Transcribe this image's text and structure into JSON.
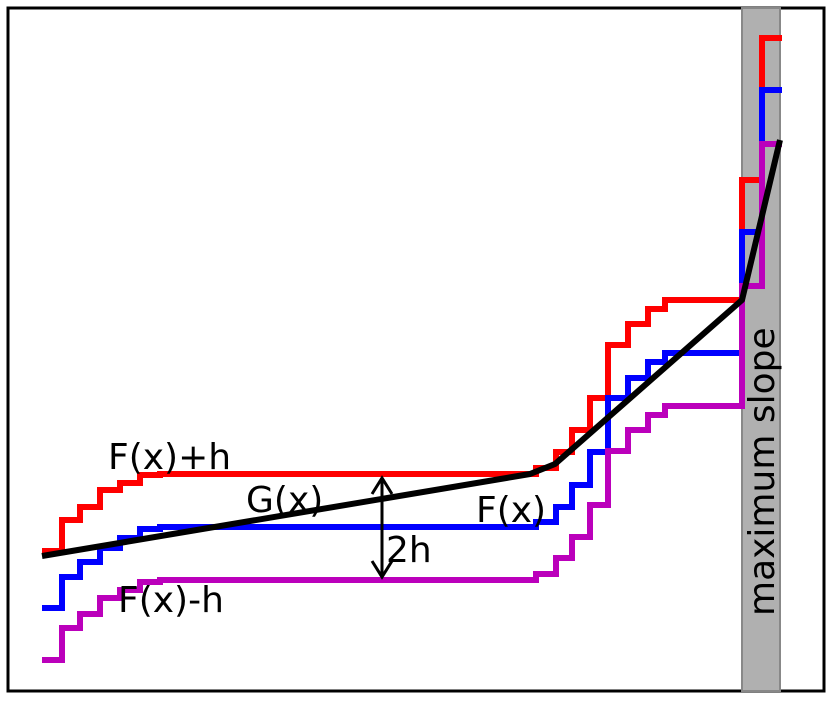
{
  "labels": {
    "f_plus_h": "F(x)+h",
    "g": "G(x)",
    "f": "F(x)",
    "two_h": "2h",
    "f_minus_h": "F(x)-h",
    "band": "maximum slope"
  },
  "colors": {
    "f_plus_h": "#ff0000",
    "f": "#0000ff",
    "f_minus_h": "#bb00bb",
    "g": "#000000",
    "band_fill": "#b0b0b0",
    "band_edge": "#888888"
  }
}
